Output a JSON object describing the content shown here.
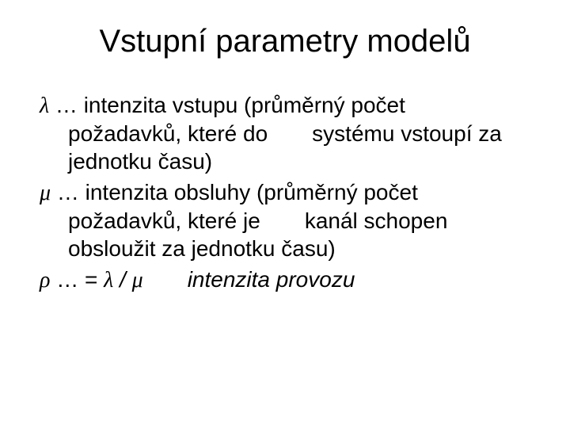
{
  "title": "Vstupní parametry modelů",
  "items": {
    "lambda": {
      "symbol": "λ",
      "ellipsis": " … ",
      "line1_rest": "intenzita vstupu (průměrný počet",
      "line2": "požadavků, které do  systému vstoupí za",
      "line3": "jednotku času)"
    },
    "mu": {
      "symbol": "μ",
      "ellipsis": " … ",
      "line1_rest": "intenzita obsluhy (průměrný počet",
      "line2": "požadavků, které je  kanál schopen",
      "line3": "obsloužit za jednotku času)"
    },
    "rho": {
      "symbol": "ρ",
      "ellipsis": " … ",
      "eq": "= ",
      "lam": "λ",
      "slash": " / ",
      "mu2": "μ",
      "spacer": "  ",
      "label": "intenzita provozu"
    }
  },
  "colors": {
    "background": "#ffffff",
    "text": "#000000"
  },
  "fonts": {
    "title_size_pt": 40,
    "body_size_pt": 28
  }
}
